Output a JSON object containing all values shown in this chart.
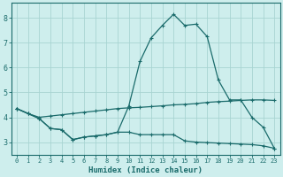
{
  "xlabel": "Humidex (Indice chaleur)",
  "xlim": [
    -0.5,
    23.5
  ],
  "ylim": [
    2.5,
    8.6
  ],
  "yticks": [
    3,
    4,
    5,
    6,
    7,
    8
  ],
  "xticks": [
    0,
    1,
    2,
    3,
    4,
    5,
    6,
    7,
    8,
    9,
    10,
    11,
    12,
    13,
    14,
    15,
    16,
    17,
    18,
    19,
    20,
    21,
    22,
    23
  ],
  "bg_color": "#ceeeed",
  "grid_color": "#a8d4d2",
  "line_color": "#1a6b6b",
  "line1_x": [
    0,
    1,
    2,
    3,
    4,
    5,
    6,
    7,
    8,
    9,
    10,
    11,
    12,
    13,
    14,
    15,
    16,
    17,
    18,
    19,
    20,
    21,
    22,
    23
  ],
  "line1_y": [
    4.35,
    4.15,
    3.95,
    3.55,
    3.5,
    3.1,
    3.2,
    3.25,
    3.3,
    3.4,
    4.45,
    6.25,
    7.2,
    7.7,
    8.15,
    7.7,
    7.75,
    7.25,
    5.5,
    4.7,
    4.7,
    4.0,
    3.6,
    2.75
  ],
  "line2_x": [
    0,
    1,
    2,
    3,
    4,
    5,
    6,
    7,
    8,
    9,
    10,
    11,
    12,
    13,
    14,
    15,
    16,
    17,
    18,
    19,
    20,
    21,
    22,
    23
  ],
  "line2_y": [
    4.35,
    4.15,
    4.0,
    4.05,
    4.1,
    4.15,
    4.2,
    4.25,
    4.3,
    4.35,
    4.38,
    4.4,
    4.43,
    4.46,
    4.5,
    4.52,
    4.55,
    4.6,
    4.63,
    4.65,
    4.68,
    4.7,
    4.7,
    4.68
  ],
  "line3_x": [
    0,
    1,
    2,
    3,
    4,
    5,
    6,
    7,
    8,
    9,
    10,
    11,
    12,
    13,
    14,
    15,
    16,
    17,
    18,
    19,
    20,
    21,
    22,
    23
  ],
  "line3_y": [
    4.35,
    4.15,
    3.95,
    3.55,
    3.5,
    3.1,
    3.2,
    3.25,
    3.3,
    3.4,
    3.4,
    3.3,
    3.3,
    3.3,
    3.3,
    3.05,
    3.0,
    2.98,
    2.96,
    2.94,
    2.92,
    2.9,
    2.85,
    2.75
  ]
}
